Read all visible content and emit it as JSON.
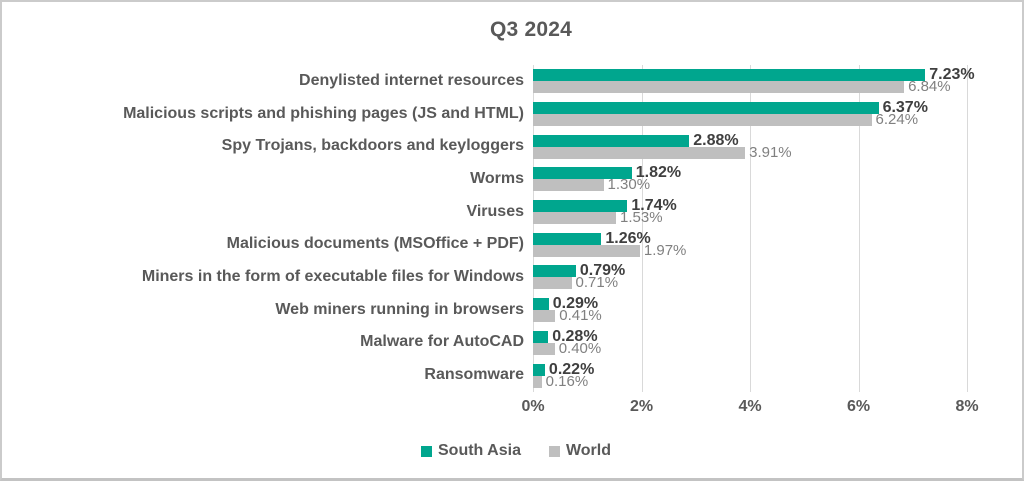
{
  "chart_data": {
    "type": "bar",
    "orientation": "horizontal",
    "title": "Q3 2024",
    "categories": [
      "Denylisted internet resources",
      "Malicious scripts and phishing pages (JS and HTML)",
      "Spy Trojans, backdoors and keyloggers",
      "Worms",
      "Viruses",
      "Malicious documents (MSOffice + PDF)",
      "Miners in the form of executable files for Windows",
      "Web miners running in browsers",
      "Malware for AutoCAD",
      "Ransomware"
    ],
    "series": [
      {
        "name": "South Asia",
        "color": "#00a68e",
        "values": [
          7.23,
          6.37,
          2.88,
          1.82,
          1.74,
          1.26,
          0.79,
          0.29,
          0.28,
          0.22
        ],
        "labels": [
          "7.23%",
          "6.37%",
          "2.88%",
          "1.82%",
          "1.74%",
          "1.26%",
          "0.79%",
          "0.29%",
          "0.28%",
          "0.22%"
        ]
      },
      {
        "name": "World",
        "color": "#bfbfbf",
        "values": [
          6.84,
          6.24,
          3.91,
          1.3,
          1.53,
          1.97,
          0.71,
          0.41,
          0.4,
          0.16
        ],
        "labels": [
          "6.84%",
          "6.24%",
          "3.91%",
          "1.30%",
          "1.53%",
          "1.97%",
          "0.71%",
          "0.41%",
          "0.40%",
          "0.16%"
        ]
      }
    ],
    "xlim": [
      0,
      8
    ],
    "x_ticks": [
      "0%",
      "2%",
      "4%",
      "6%",
      "8%"
    ],
    "grid": true,
    "legend_position": "bottom",
    "legend": [
      "South Asia",
      "World"
    ]
  },
  "style_colors": {
    "south_asia_bar": "#00a68e",
    "world_bar": "#bfbfbf",
    "text_dark": "#595959",
    "gridline": "#d9d9d9"
  }
}
